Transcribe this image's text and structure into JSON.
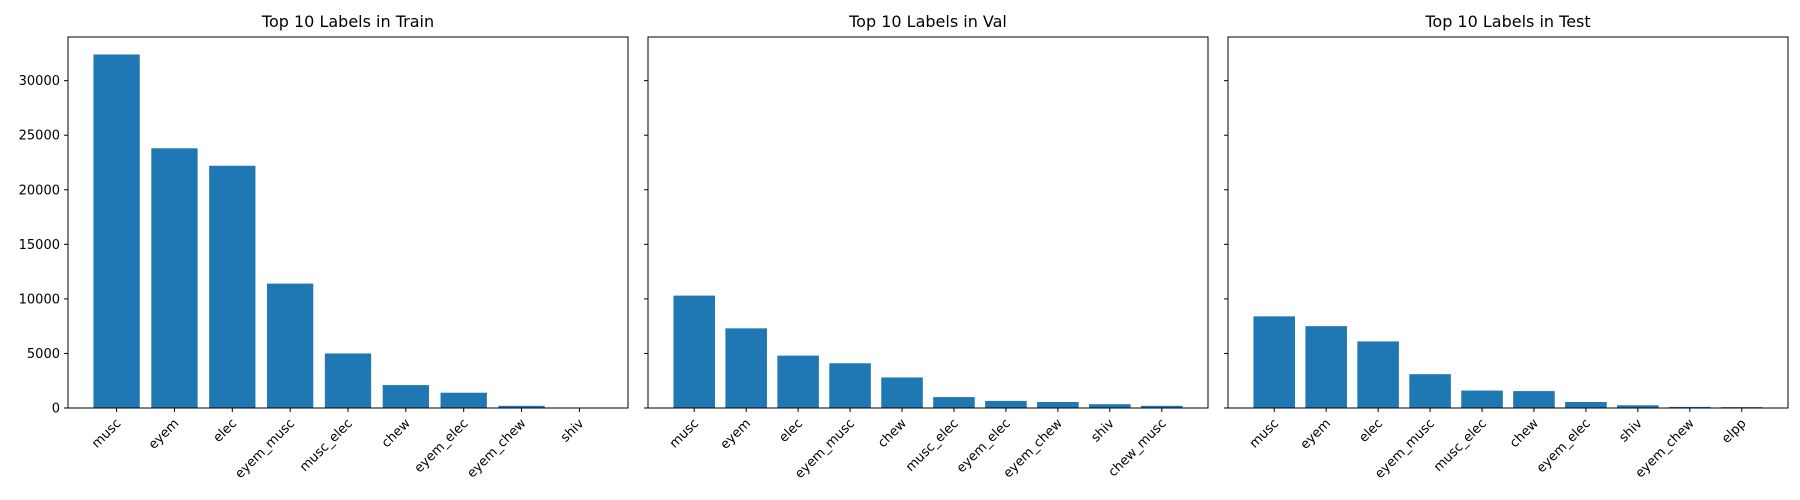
{
  "chart_data": [
    {
      "type": "bar",
      "title": "Top 10 Labels in Train",
      "categories": [
        "musc",
        "eyem",
        "elec",
        "eyem_musc",
        "musc_elec",
        "chew",
        "eyem_elec",
        "eyem_chew",
        "shiv"
      ],
      "values": [
        32400,
        23800,
        22200,
        11400,
        5000,
        2100,
        1400,
        200,
        50
      ],
      "ylim": [
        0,
        34000
      ],
      "yticks": [
        0,
        5000,
        10000,
        15000,
        20000,
        25000,
        30000
      ],
      "show_yticklabels": true,
      "bar_color": "#1f77b4"
    },
    {
      "type": "bar",
      "title": "Top 10 Labels in Val",
      "categories": [
        "musc",
        "eyem",
        "elec",
        "eyem_musc",
        "chew",
        "musc_elec",
        "eyem_elec",
        "eyem_chew",
        "shiv",
        "chew_musc"
      ],
      "values": [
        10300,
        7300,
        4800,
        4100,
        2800,
        1000,
        650,
        550,
        350,
        200
      ],
      "ylim": [
        0,
        34000
      ],
      "yticks": [
        0,
        5000,
        10000,
        15000,
        20000,
        25000,
        30000
      ],
      "show_yticklabels": false,
      "bar_color": "#1f77b4"
    },
    {
      "type": "bar",
      "title": "Top 10 Labels in Test",
      "categories": [
        "musc",
        "eyem",
        "elec",
        "eyem_musc",
        "musc_elec",
        "chew",
        "eyem_elec",
        "shiv",
        "eyem_chew",
        "elpp"
      ],
      "values": [
        8400,
        7500,
        6100,
        3100,
        1600,
        1550,
        550,
        250,
        100,
        80
      ],
      "ylim": [
        0,
        34000
      ],
      "yticks": [
        0,
        5000,
        10000,
        15000,
        20000,
        25000,
        30000
      ],
      "show_yticklabels": false,
      "bar_color": "#1f77b4"
    }
  ]
}
